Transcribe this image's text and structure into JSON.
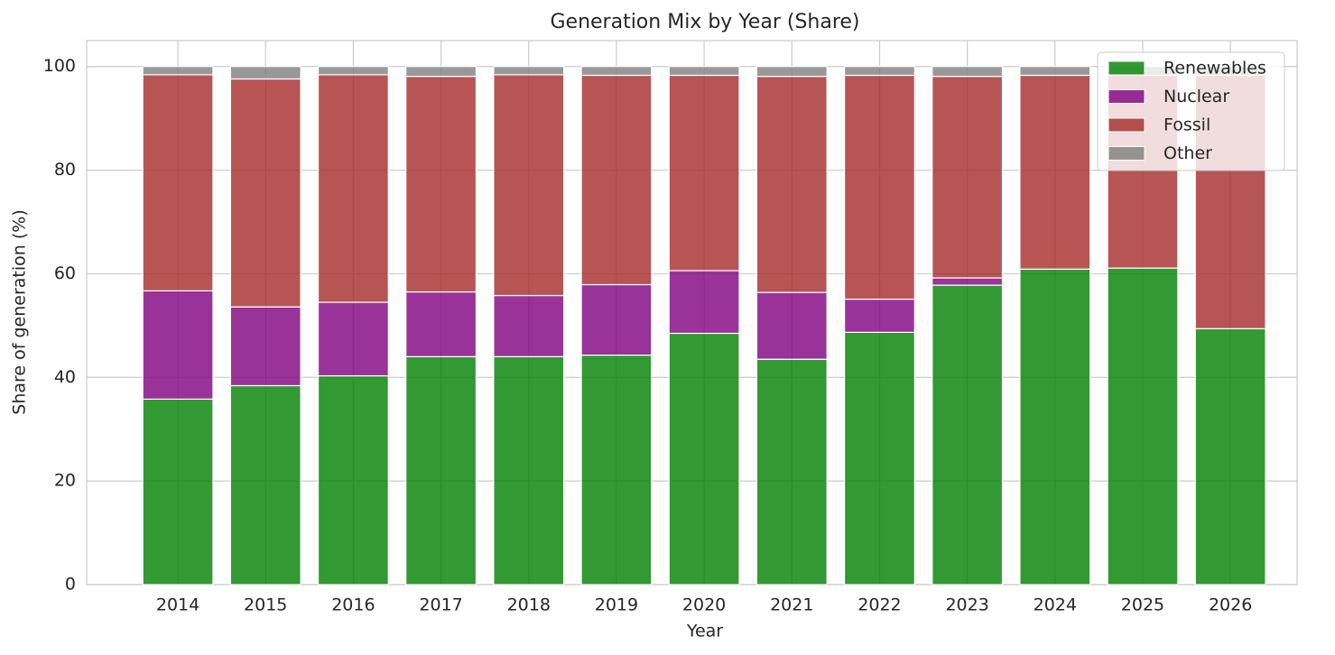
{
  "chart_data": {
    "type": "stacked_bar",
    "title": "Generation Mix by Year (Share)",
    "xlabel": "Year",
    "ylabel": "Share of generation (%)",
    "categories": [
      "2014",
      "2015",
      "2016",
      "2017",
      "2018",
      "2019",
      "2020",
      "2021",
      "2022",
      "2023",
      "2024",
      "2025",
      "2026"
    ],
    "series": [
      {
        "name": "Renewables",
        "color": "#008000",
        "values": [
          35.8,
          38.4,
          40.3,
          44.0,
          44.0,
          44.3,
          48.5,
          43.5,
          48.7,
          57.8,
          60.9,
          61.1,
          49.4
        ]
      },
      {
        "name": "Nuclear",
        "color": "#800080",
        "values": [
          20.9,
          15.2,
          14.2,
          12.5,
          11.8,
          13.6,
          12.1,
          12.9,
          6.4,
          1.4,
          0,
          0,
          0
        ]
      },
      {
        "name": "Fossil",
        "color": "#a52a2a",
        "values": [
          41.7,
          44.0,
          43.9,
          41.6,
          42.6,
          40.4,
          37.7,
          41.7,
          43.2,
          38.9,
          37.4,
          37.2,
          48.9
        ]
      },
      {
        "name": "Other",
        "color": "#808080",
        "values": [
          1.6,
          2.4,
          1.6,
          1.9,
          1.6,
          1.7,
          1.7,
          1.9,
          1.7,
          1.9,
          1.7,
          1.7,
          1.7
        ]
      }
    ],
    "ylim": [
      0,
      105
    ],
    "yticks": [
      0,
      20,
      40,
      60,
      80,
      100
    ],
    "grid": true,
    "legend": "upper right"
  }
}
